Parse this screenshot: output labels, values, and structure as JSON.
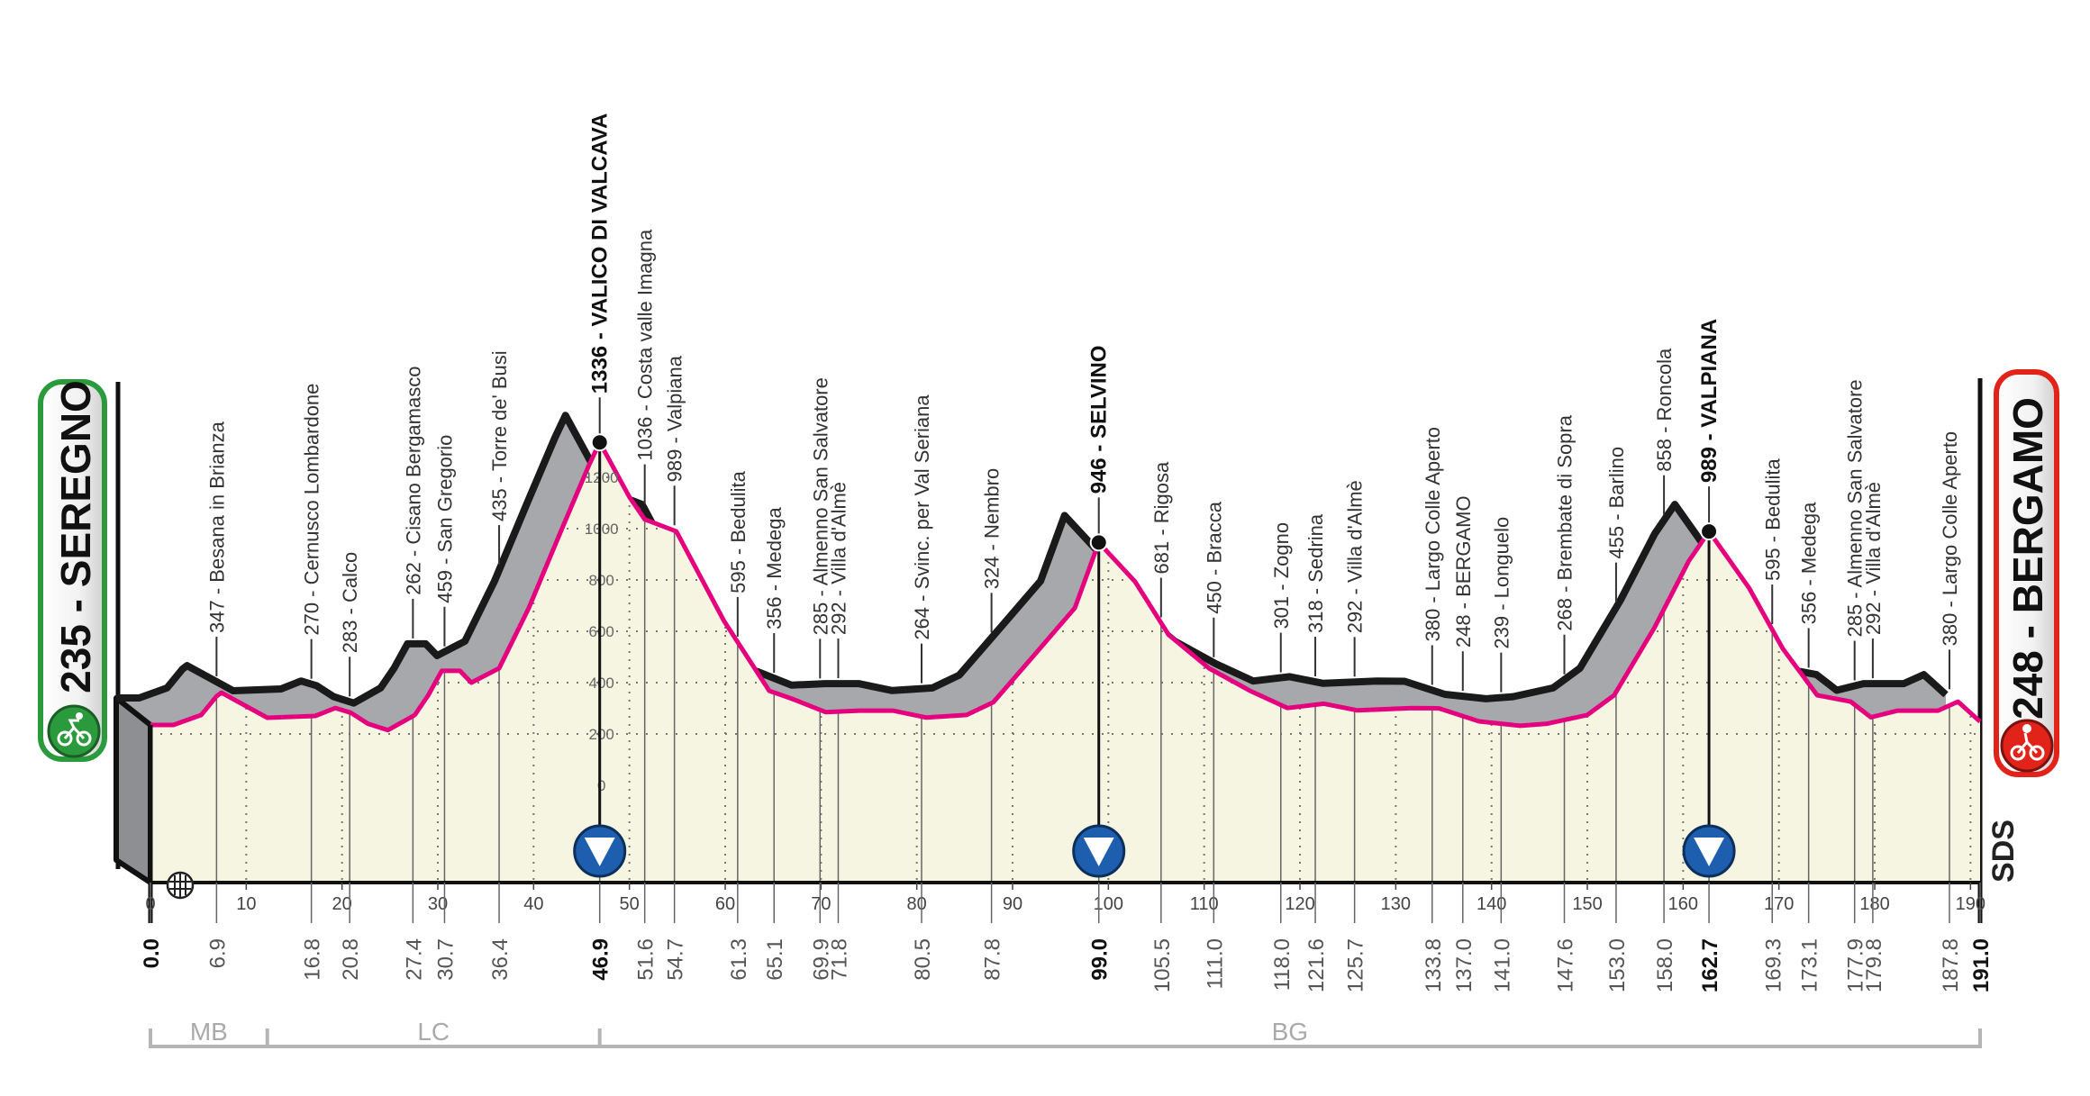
{
  "start": {
    "label": "235 - SEREGNO",
    "color": "#2a9a3c",
    "icon": "cyclist-icon"
  },
  "finish": {
    "label": "248 - BERGAMO",
    "color": "#e2231a",
    "icon": "cyclist-icon"
  },
  "logo": "SDS",
  "colors": {
    "profile_line": "#e5007e",
    "extrusion": "#a7a8ab",
    "fill": "#f5f5e1",
    "summit_marker": "#1d5fae"
  },
  "chart_data": {
    "type": "area",
    "xlabel": "",
    "ylabel": "",
    "xlim": [
      0,
      191
    ],
    "ylim": [
      0,
      1336
    ],
    "x_ticks": [
      0,
      10,
      20,
      30,
      40,
      50,
      60,
      70,
      80,
      90,
      100,
      110,
      120,
      130,
      140,
      150,
      160,
      170,
      180,
      190
    ],
    "y_ticks": [
      0,
      200,
      400,
      600,
      800,
      1000,
      1200
    ],
    "grid": true,
    "profile": [
      [
        0,
        235
      ],
      [
        2.4,
        235
      ],
      [
        5.3,
        274
      ],
      [
        6.9,
        347
      ],
      [
        7.4,
        361
      ],
      [
        12.2,
        263
      ],
      [
        17.2,
        270
      ],
      [
        19.3,
        301
      ],
      [
        20.9,
        283
      ],
      [
        22.7,
        240
      ],
      [
        24.8,
        215
      ],
      [
        27.6,
        274
      ],
      [
        29,
        351
      ],
      [
        30.4,
        446
      ],
      [
        32.3,
        446
      ],
      [
        33.5,
        400
      ],
      [
        36.4,
        456
      ],
      [
        39.5,
        691
      ],
      [
        43,
        1003
      ],
      [
        45.8,
        1249
      ],
      [
        46.9,
        1336
      ],
      [
        50,
        1123
      ],
      [
        51.6,
        1036
      ],
      [
        54.9,
        989
      ],
      [
        59.9,
        639
      ],
      [
        64.6,
        368
      ],
      [
        67,
        337
      ],
      [
        70.5,
        285
      ],
      [
        74,
        291
      ],
      [
        77.5,
        291
      ],
      [
        81,
        264
      ],
      [
        85.2,
        274
      ],
      [
        88,
        324
      ],
      [
        92.3,
        509
      ],
      [
        96.5,
        691
      ],
      [
        99,
        946
      ],
      [
        102.8,
        793
      ],
      [
        106.3,
        586
      ],
      [
        110.5,
        456
      ],
      [
        114.8,
        368
      ],
      [
        118.7,
        301
      ],
      [
        122.5,
        318
      ],
      [
        126,
        292
      ],
      [
        131.7,
        301
      ],
      [
        134.5,
        300
      ],
      [
        138.7,
        249
      ],
      [
        143,
        232
      ],
      [
        145.8,
        240
      ],
      [
        150,
        274
      ],
      [
        152.8,
        351
      ],
      [
        157,
        614
      ],
      [
        160.6,
        874
      ],
      [
        162.7,
        989
      ],
      [
        166.9,
        768
      ],
      [
        170.4,
        533
      ],
      [
        174,
        351
      ],
      [
        177.5,
        326
      ],
      [
        179.6,
        265
      ],
      [
        182.4,
        291
      ],
      [
        186.6,
        291
      ],
      [
        188.7,
        326
      ],
      [
        191,
        248
      ]
    ],
    "waypoints": [
      {
        "km": "6.9",
        "label": "347 - Besana in Brianza",
        "bold": false
      },
      {
        "km": "16.8",
        "label": "270 - Cernusco Lombardone",
        "bold": false
      },
      {
        "km": "20.8",
        "label": "283 - Calco",
        "bold": false
      },
      {
        "km": "27.4",
        "label": "262 - Cisano Bergamasco",
        "bold": false
      },
      {
        "km": "30.7",
        "label": "459 - San Gregorio",
        "bold": false
      },
      {
        "km": "36.4",
        "label": "435 - Torre de' Busi",
        "bold": false
      },
      {
        "km": "46.9",
        "label": "1336 - VALICO DI VALCAVA",
        "bold": true,
        "summit": true
      },
      {
        "km": "51.6",
        "label": "1036 - Costa valle Imagna",
        "bold": false
      },
      {
        "km": "54.7",
        "label": "989 - Valpiana",
        "bold": false
      },
      {
        "km": "61.3",
        "label": "595 - Bedulita",
        "bold": false
      },
      {
        "km": "65.1",
        "label": "356 - Medega",
        "bold": false
      },
      {
        "km": "69.9",
        "label": "285 - Almenno San Salvatore",
        "bold": false
      },
      {
        "km": "71.8",
        "label": "292 - Villa d'Almè",
        "bold": false
      },
      {
        "km": "80.5",
        "label": "264 - Svinc. per Val Seriana",
        "bold": false
      },
      {
        "km": "87.8",
        "label": "324 - Nembro",
        "bold": false
      },
      {
        "km": "99.0",
        "label": "946 - SELVINO",
        "bold": true,
        "summit": true
      },
      {
        "km": "105.5",
        "label": "681 - Rigosa",
        "bold": false
      },
      {
        "km": "111.0",
        "label": "450 - Bracca",
        "bold": false
      },
      {
        "km": "118.0",
        "label": "301 - Zogno",
        "bold": false
      },
      {
        "km": "121.6",
        "label": "318 - Sedrina",
        "bold": false
      },
      {
        "km": "125.7",
        "label": "292 - Villa d'Almè",
        "bold": false
      },
      {
        "km": "133.8",
        "label": "380 - Largo Colle Aperto",
        "bold": false
      },
      {
        "km": "137.0",
        "label": "248 - BERGAMO",
        "bold": false
      },
      {
        "km": "141.0",
        "label": "239 - Longuelo",
        "bold": false
      },
      {
        "km": "147.6",
        "label": "268 - Brembate di Sopra",
        "bold": false
      },
      {
        "km": "153.0",
        "label": "455 - Barlino",
        "bold": false
      },
      {
        "km": "158.0",
        "label": "858 - Roncola",
        "bold": false
      },
      {
        "km": "162.7",
        "label": "989 - VALPIANA",
        "bold": true,
        "summit": true
      },
      {
        "km": "169.3",
        "label": "595 - Bedulita",
        "bold": false
      },
      {
        "km": "173.1",
        "label": "356 - Medega",
        "bold": false
      },
      {
        "km": "177.9",
        "label": "285 - Almenno San Salvatore",
        "bold": false
      },
      {
        "km": "179.8",
        "label": "292 - Villa d'Almè",
        "bold": false
      },
      {
        "km": "187.8",
        "label": "380 - Largo Colle Aperto",
        "bold": false
      }
    ],
    "km_labels": [
      {
        "km": "0.0",
        "bold": true
      },
      {
        "km": "6.9"
      },
      {
        "km": "16.8"
      },
      {
        "km": "20.8"
      },
      {
        "km": "27.4"
      },
      {
        "km": "30.7"
      },
      {
        "km": "36.4"
      },
      {
        "km": "46.9",
        "bold": true
      },
      {
        "km": "51.6"
      },
      {
        "km": "54.7"
      },
      {
        "km": "61.3"
      },
      {
        "km": "65.1"
      },
      {
        "km": "69.9"
      },
      {
        "km": "71.8"
      },
      {
        "km": "80.5"
      },
      {
        "km": "87.8"
      },
      {
        "km": "99.0",
        "bold": true
      },
      {
        "km": "105.5"
      },
      {
        "km": "111.0"
      },
      {
        "km": "118.0"
      },
      {
        "km": "121.6"
      },
      {
        "km": "125.7"
      },
      {
        "km": "133.8"
      },
      {
        "km": "137.0"
      },
      {
        "km": "141.0"
      },
      {
        "km": "147.6"
      },
      {
        "km": "153.0"
      },
      {
        "km": "158.0"
      },
      {
        "km": "162.7",
        "bold": true
      },
      {
        "km": "169.3"
      },
      {
        "km": "173.1"
      },
      {
        "km": "177.9"
      },
      {
        "km": "179.8"
      },
      {
        "km": "187.8"
      },
      {
        "km": "191.0",
        "bold": true
      }
    ],
    "provinces": [
      {
        "code": "MB",
        "from_km": 0,
        "to_km": 12.2
      },
      {
        "code": "LC",
        "from_km": 12.2,
        "to_km": 46.9
      },
      {
        "code": "BG",
        "from_km": 46.9,
        "to_km": 191
      }
    ]
  }
}
